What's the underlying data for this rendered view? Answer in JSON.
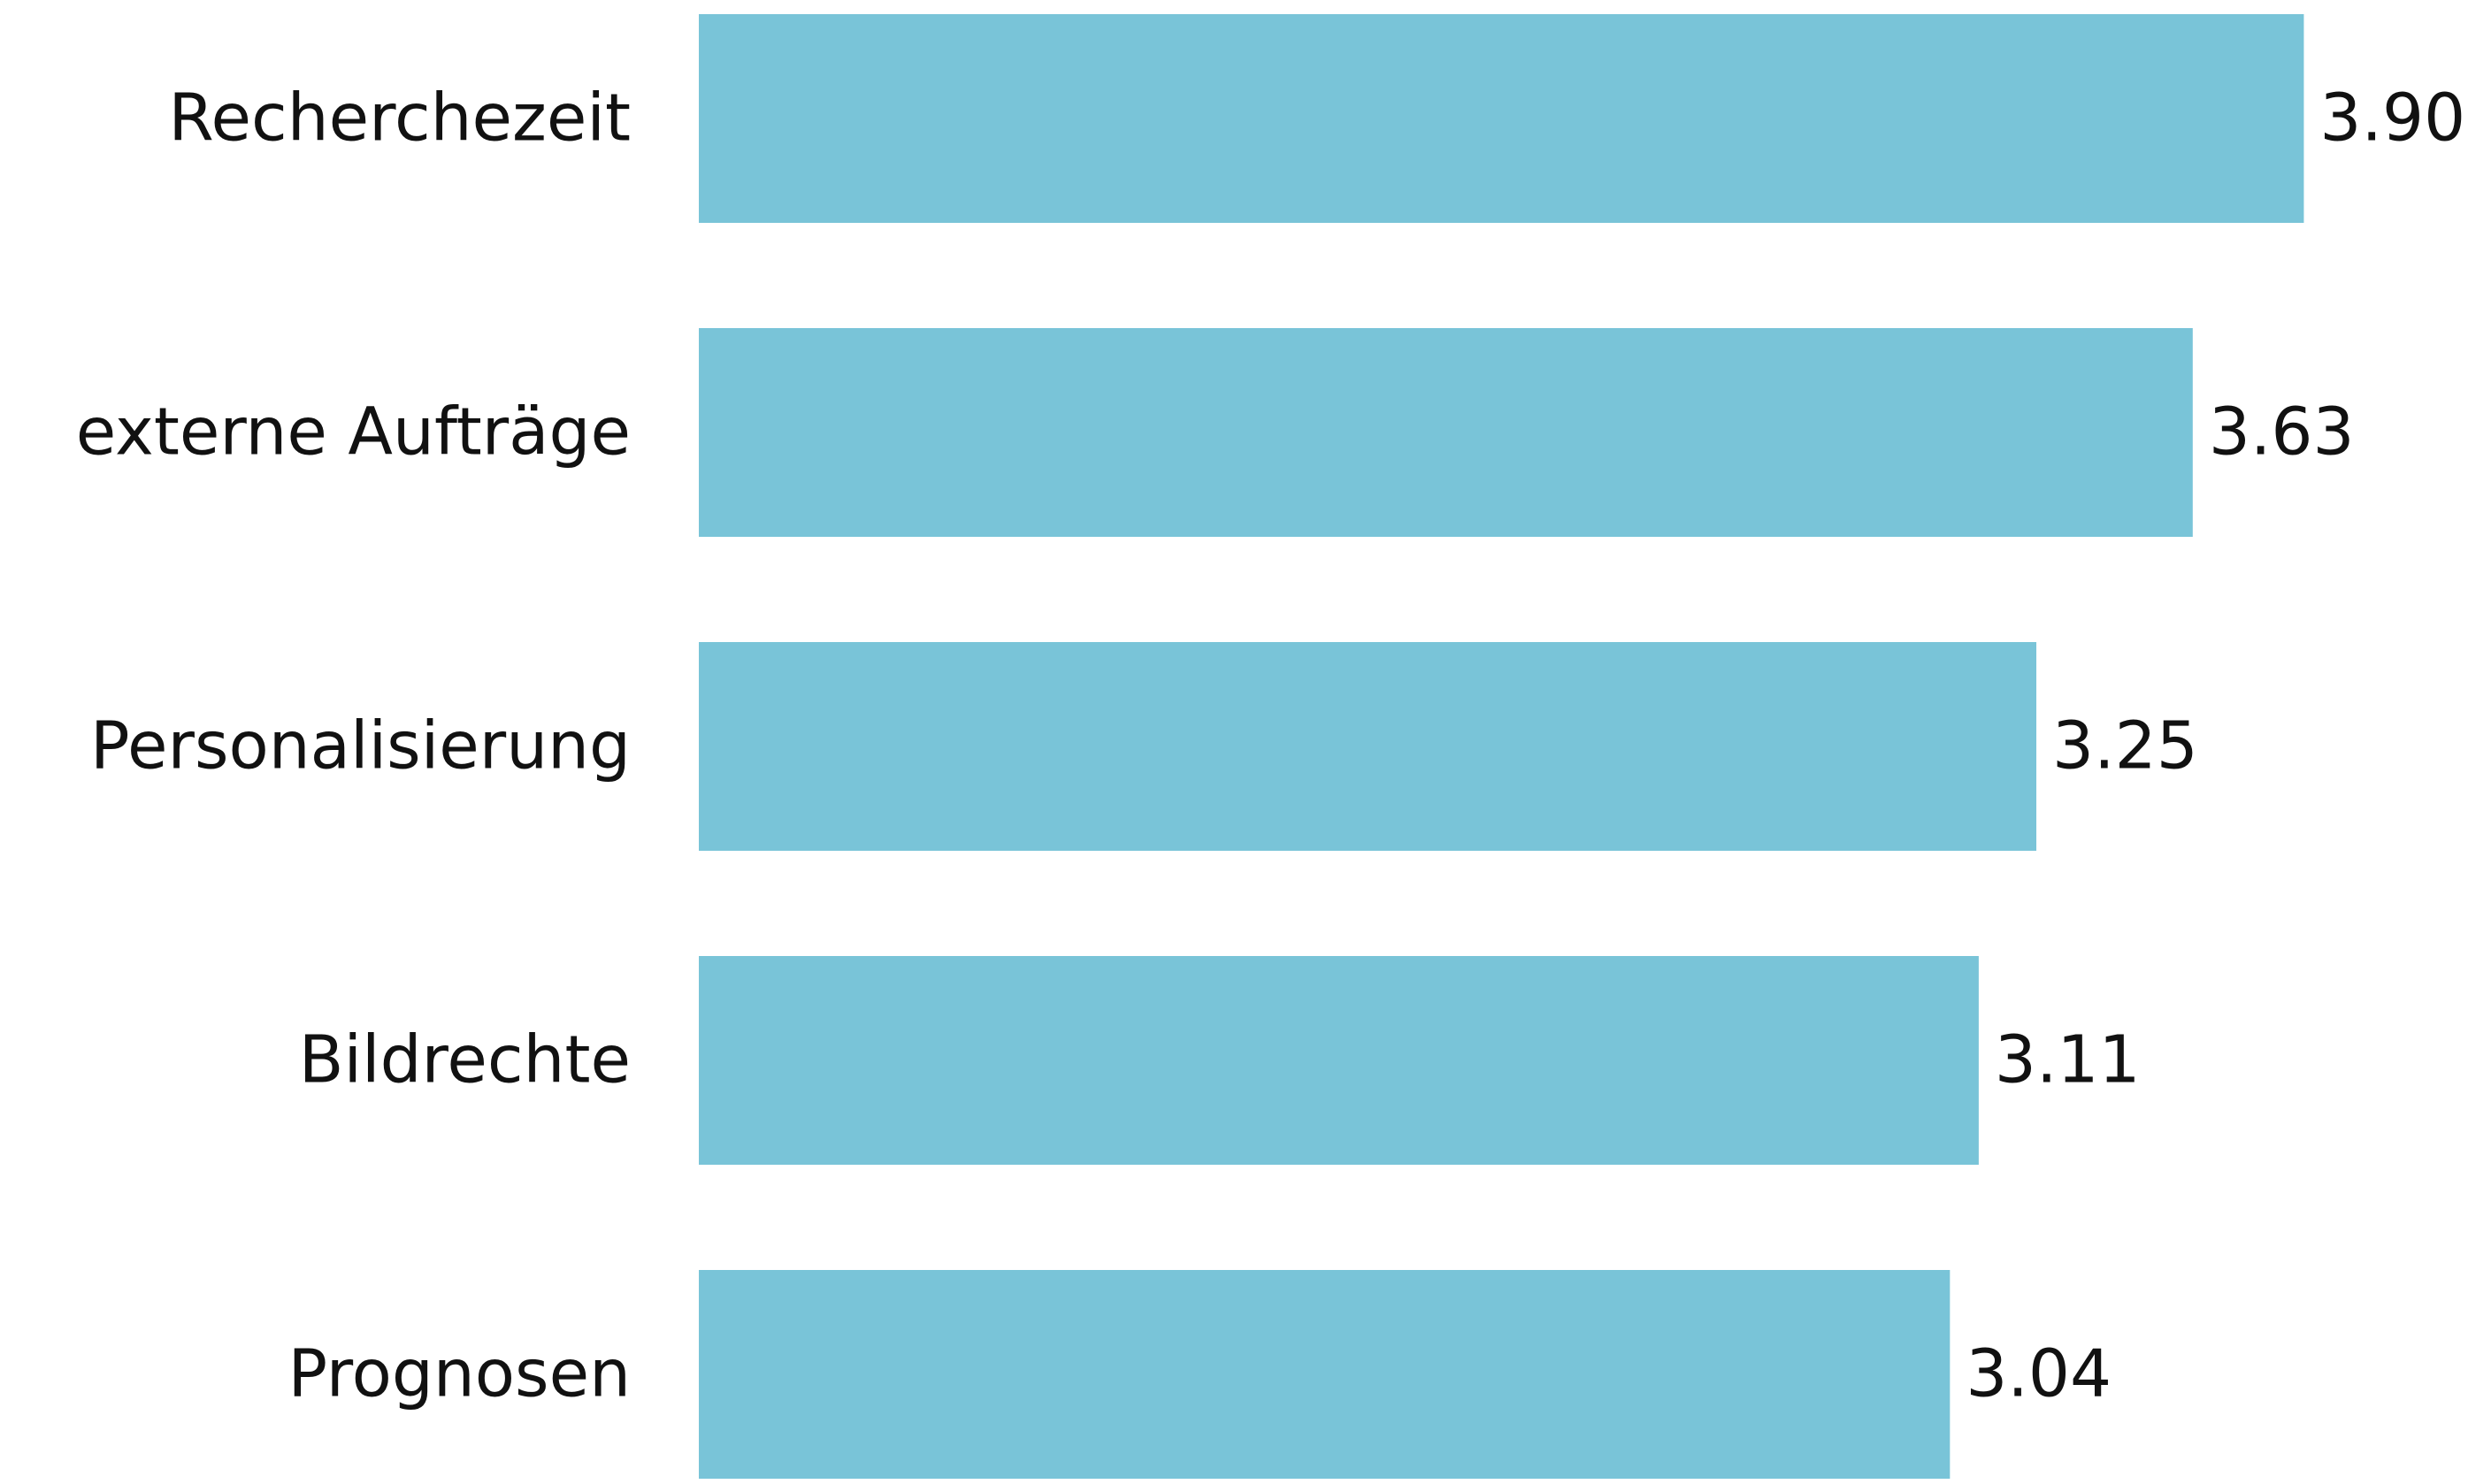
{
  "chart_data": {
    "type": "bar",
    "orientation": "horizontal",
    "categories": [
      "Recherchezeit",
      "externe Aufträge",
      "Personalisierung",
      "Bildrechte",
      "Prognosen"
    ],
    "values": [
      3.9,
      3.63,
      3.25,
      3.11,
      3.04
    ],
    "value_labels": [
      "3.90",
      "3.63",
      "3.25",
      "3.11",
      "3.04"
    ],
    "color": "#79c4d8",
    "xlim": [
      0,
      4.2
    ]
  }
}
